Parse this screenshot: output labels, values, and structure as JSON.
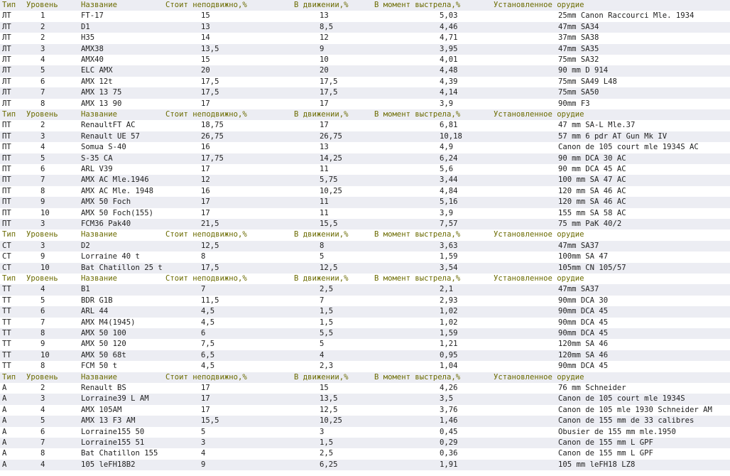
{
  "header": [
    "Тип",
    "Уровень",
    "Название",
    "Стоит неподвижно,%",
    "В движении,%",
    "В момент выстрела,%",
    "Установленное орудие"
  ],
  "groups": [
    {
      "rows": [
        [
          "ЛТ",
          "1",
          "FT-17",
          "15",
          "13",
          "5,03",
          "25mm Canon Raccourci Mle. 1934"
        ],
        [
          "ЛТ",
          "2",
          "D1",
          "13",
          "8,5",
          "4,46",
          "47mm SA34"
        ],
        [
          "ЛТ",
          "2",
          "H35",
          "14",
          "12",
          "4,71",
          "37mm SA38"
        ],
        [
          "ЛТ",
          "3",
          "AMX38",
          "13,5",
          "9",
          "3,95",
          "47mm SA35"
        ],
        [
          "ЛТ",
          "4",
          "AMX40",
          "15",
          "10",
          "4,01",
          "75mm SA32"
        ],
        [
          "ЛТ",
          "5",
          "ELC AMX",
          "20",
          "20",
          "4,48",
          "90 mm D 914"
        ],
        [
          "ЛТ",
          "6",
          "AMX 12t",
          "17,5",
          "17,5",
          "4,39",
          "75mm SA49 L48"
        ],
        [
          "ЛТ",
          "7",
          "AMX 13 75",
          "17,5",
          "17,5",
          "4,14",
          "75mm SA50"
        ],
        [
          "ЛТ",
          "8",
          "AMX 13 90",
          "17",
          "17",
          "3,9",
          "90mm F3"
        ]
      ]
    },
    {
      "rows": [
        [
          "ПТ",
          "2",
          "RenaultFT AC",
          "18,75",
          "17",
          "6,81",
          "47 mm SA-L Mle.37"
        ],
        [
          "ПТ",
          "3",
          "Renault UE 57",
          "26,75",
          "26,75",
          "10,18",
          "57 mm 6 pdr AT Gun Mk IV"
        ],
        [
          "ПТ",
          "4",
          "Somua S-40",
          "16",
          "13",
          "4,9",
          "Canon de 105 court mle 1934S AC"
        ],
        [
          "ПТ",
          "5",
          "S-35 CA",
          "17,75",
          "14,25",
          "6,24",
          "90 mm DCA 30 AC"
        ],
        [
          "ПТ",
          "6",
          "ARL V39",
          "17",
          "11",
          "5,6",
          "90 mm DCA 45 AC"
        ],
        [
          "ПТ",
          "7",
          "AMX AC Mle.1946",
          "12",
          "5,75",
          "3,44",
          "100 mm SA 47 AC"
        ],
        [
          "ПТ",
          "8",
          "AMX AC Mle. 1948",
          "16",
          "10,25",
          "4,84",
          "120 mm SA 46 AC"
        ],
        [
          "ПТ",
          "9",
          "AMX 50 Foch",
          "17",
          "11",
          "5,16",
          "120 mm SA 46 AC"
        ],
        [
          "ПТ",
          "10",
          "AMX 50 Foch(155)",
          "17",
          "11",
          "3,9",
          "155 mm SA 58 AC"
        ],
        [
          "ПТ",
          "3",
          "FCM36 Pak40",
          "21,5",
          "15,5",
          "7,57",
          "75 mm PaK 40/2"
        ]
      ]
    },
    {
      "rows": [
        [
          "СТ",
          "3",
          "D2",
          "12,5",
          "8",
          "3,63",
          "47mm SA37"
        ],
        [
          "СТ",
          "9",
          "Lorraine 40 t",
          "8",
          "5",
          "1,59",
          "100mm SA 47"
        ],
        [
          "СТ",
          "10",
          "Bat Chatillon 25 t",
          "17,5",
          "12,5",
          "3,54",
          "105mm CN 105/57"
        ]
      ]
    },
    {
      "rows": [
        [
          "ТТ",
          "4",
          "B1",
          "7",
          "2,5",
          "2,1",
          "47mm SA37"
        ],
        [
          "ТТ",
          "5",
          "BDR G1B",
          "11,5",
          "7",
          "2,93",
          "90mm DCA 30"
        ],
        [
          "ТТ",
          "6",
          "ARL 44",
          "4,5",
          "1,5",
          "1,02",
          "90mm DCA 45"
        ],
        [
          "ТТ",
          "7",
          "AMX M4(1945)",
          "4,5",
          "1,5",
          "1,02",
          "90mm DCA 45"
        ],
        [
          "ТТ",
          "8",
          "AMX 50 100",
          "6",
          "5,5",
          "1,59",
          "90mm DCA 45"
        ],
        [
          "ТТ",
          "9",
          "AMX 50 120",
          "7,5",
          "5",
          "1,21",
          "120mm SA 46"
        ],
        [
          "ТТ",
          "10",
          "AMX 50 68t",
          "6,5",
          "4",
          "0,95",
          "120mm SA 46"
        ],
        [
          "ТТ",
          "8",
          "FCM 50 t",
          "4,5",
          "2,3",
          "1,04",
          "90mm DCA 45"
        ]
      ]
    },
    {
      "rows": [
        [
          "А",
          "2",
          "Renault BS",
          "17",
          "15",
          "4,26",
          "76 mm Schneider"
        ],
        [
          "А",
          "3",
          "Lorraine39 L AM",
          "17",
          "13,5",
          "3,5",
          "Canon de 105 court mle 1934S"
        ],
        [
          "А",
          "4",
          "AMX 105AM",
          "17",
          "12,5",
          "3,76",
          "Canon de 105 mle 1930 Schneider AM"
        ],
        [
          "А",
          "5",
          "AMX 13 F3 AM",
          "15,5",
          "10,25",
          "1,46",
          "Canon de 155 mm de 33 calibres"
        ],
        [
          "А",
          "6",
          "Lorraine155 50",
          "5",
          "3",
          "0,45",
          "Obusier de 155 mm mle.1950"
        ],
        [
          "А",
          "7",
          "Lorraine155 51",
          "3",
          "1,5",
          "0,29",
          "Canon de 155 mm L GPF"
        ],
        [
          "А",
          "8",
          "Bat Chatillon 155",
          "4",
          "2,5",
          "0,36",
          "Canon de 155 mm L GPF"
        ],
        [
          "А",
          "4",
          "105 leFH18B2",
          "9",
          "6,25",
          "1,91",
          "105 mm leFH18 LZ8"
        ]
      ]
    }
  ]
}
